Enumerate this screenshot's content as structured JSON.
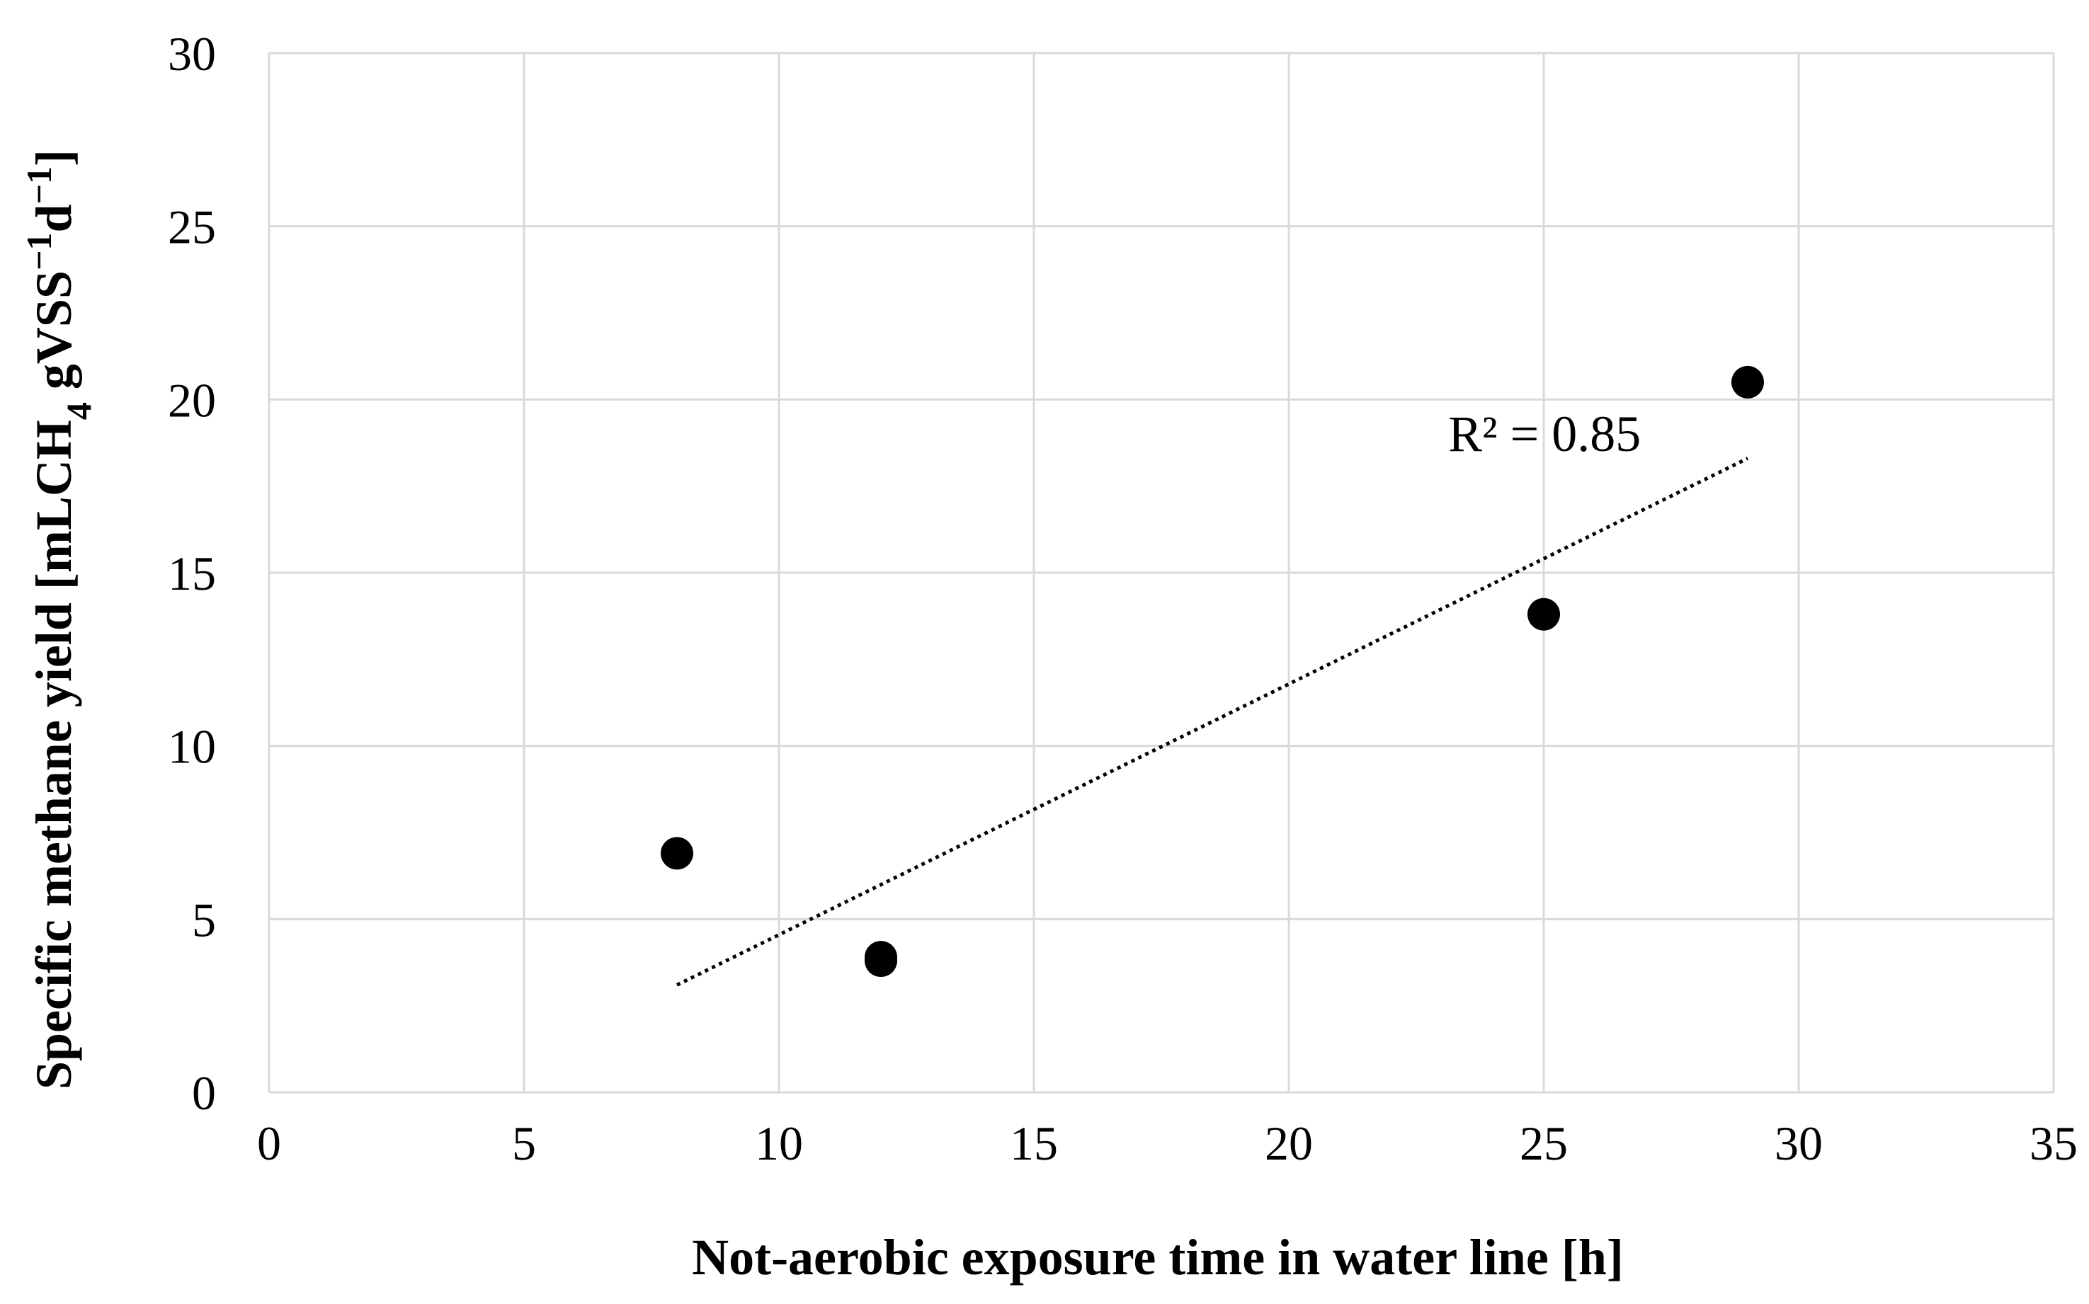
{
  "chart_data": {
    "type": "scatter",
    "title": "",
    "xlabel": "Not-aerobic exposure time in water line [h]",
    "ylabel": {
      "before_sub": "Specific methane yield [mLCH",
      "sub": "4",
      "after_sub": " gVSS",
      "sup1": "−1",
      "mid": "d",
      "sup2": "−1",
      "end": "]"
    },
    "xlim": [
      0,
      35
    ],
    "ylim": [
      0,
      30
    ],
    "x_ticks": [
      0,
      5,
      10,
      15,
      20,
      25,
      30,
      35
    ],
    "y_ticks": [
      0,
      5,
      10,
      15,
      20,
      25,
      30
    ],
    "grid": true,
    "legend": "none",
    "series": [
      {
        "name": "Specific methane yield",
        "points": [
          {
            "x": 8,
            "y": 6.9
          },
          {
            "x": 12,
            "y": 3.8
          },
          {
            "x": 12,
            "y": 3.9
          },
          {
            "x": 25,
            "y": 13.8
          },
          {
            "x": 29,
            "y": 20.5
          }
        ],
        "marker_color": "#000000"
      }
    ],
    "trendline": {
      "type": "linear",
      "x_start": 8,
      "x_end": 29,
      "y_start": 3.1,
      "y_end": 18.3,
      "style": "dotted",
      "color": "#000000",
      "label": "R² = 0.85"
    }
  }
}
